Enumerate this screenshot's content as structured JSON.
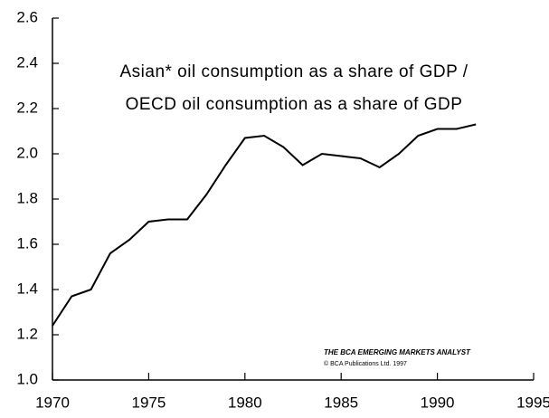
{
  "chart_data": {
    "type": "line",
    "annotations": [
      "Asian* oil consumption as a share of GDP /",
      "OECD oil consumption as a share of GDP"
    ],
    "source": [
      "THE BCA EMERGING MARKETS ANALYST",
      "© BCA Publications Ltd. 1997"
    ],
    "x": [
      1970,
      1971,
      1972,
      1973,
      1974,
      1975,
      1976,
      1977,
      1978,
      1979,
      1980,
      1981,
      1982,
      1983,
      1984,
      1985,
      1986,
      1987,
      1988,
      1989,
      1990,
      1991,
      1992
    ],
    "values": [
      1.24,
      1.37,
      1.4,
      1.56,
      1.62,
      1.7,
      1.71,
      1.71,
      1.82,
      1.95,
      2.07,
      2.08,
      2.03,
      1.95,
      2.0,
      1.99,
      1.98,
      1.94,
      2.0,
      2.08,
      2.11,
      2.11,
      2.13
    ],
    "color": "#000000",
    "xlim": [
      1970,
      1995
    ],
    "xticks": [
      1970,
      1975,
      1980,
      1985,
      1990,
      1995
    ],
    "ylim": [
      1,
      2.6
    ],
    "yticks": [
      {
        "value": 1,
        "label": "1.0"
      },
      1.2,
      1.4,
      1.6,
      1.8,
      {
        "value": 2,
        "label": "2.0"
      },
      2.2,
      2.4,
      2.6
    ],
    "grid": false
  }
}
